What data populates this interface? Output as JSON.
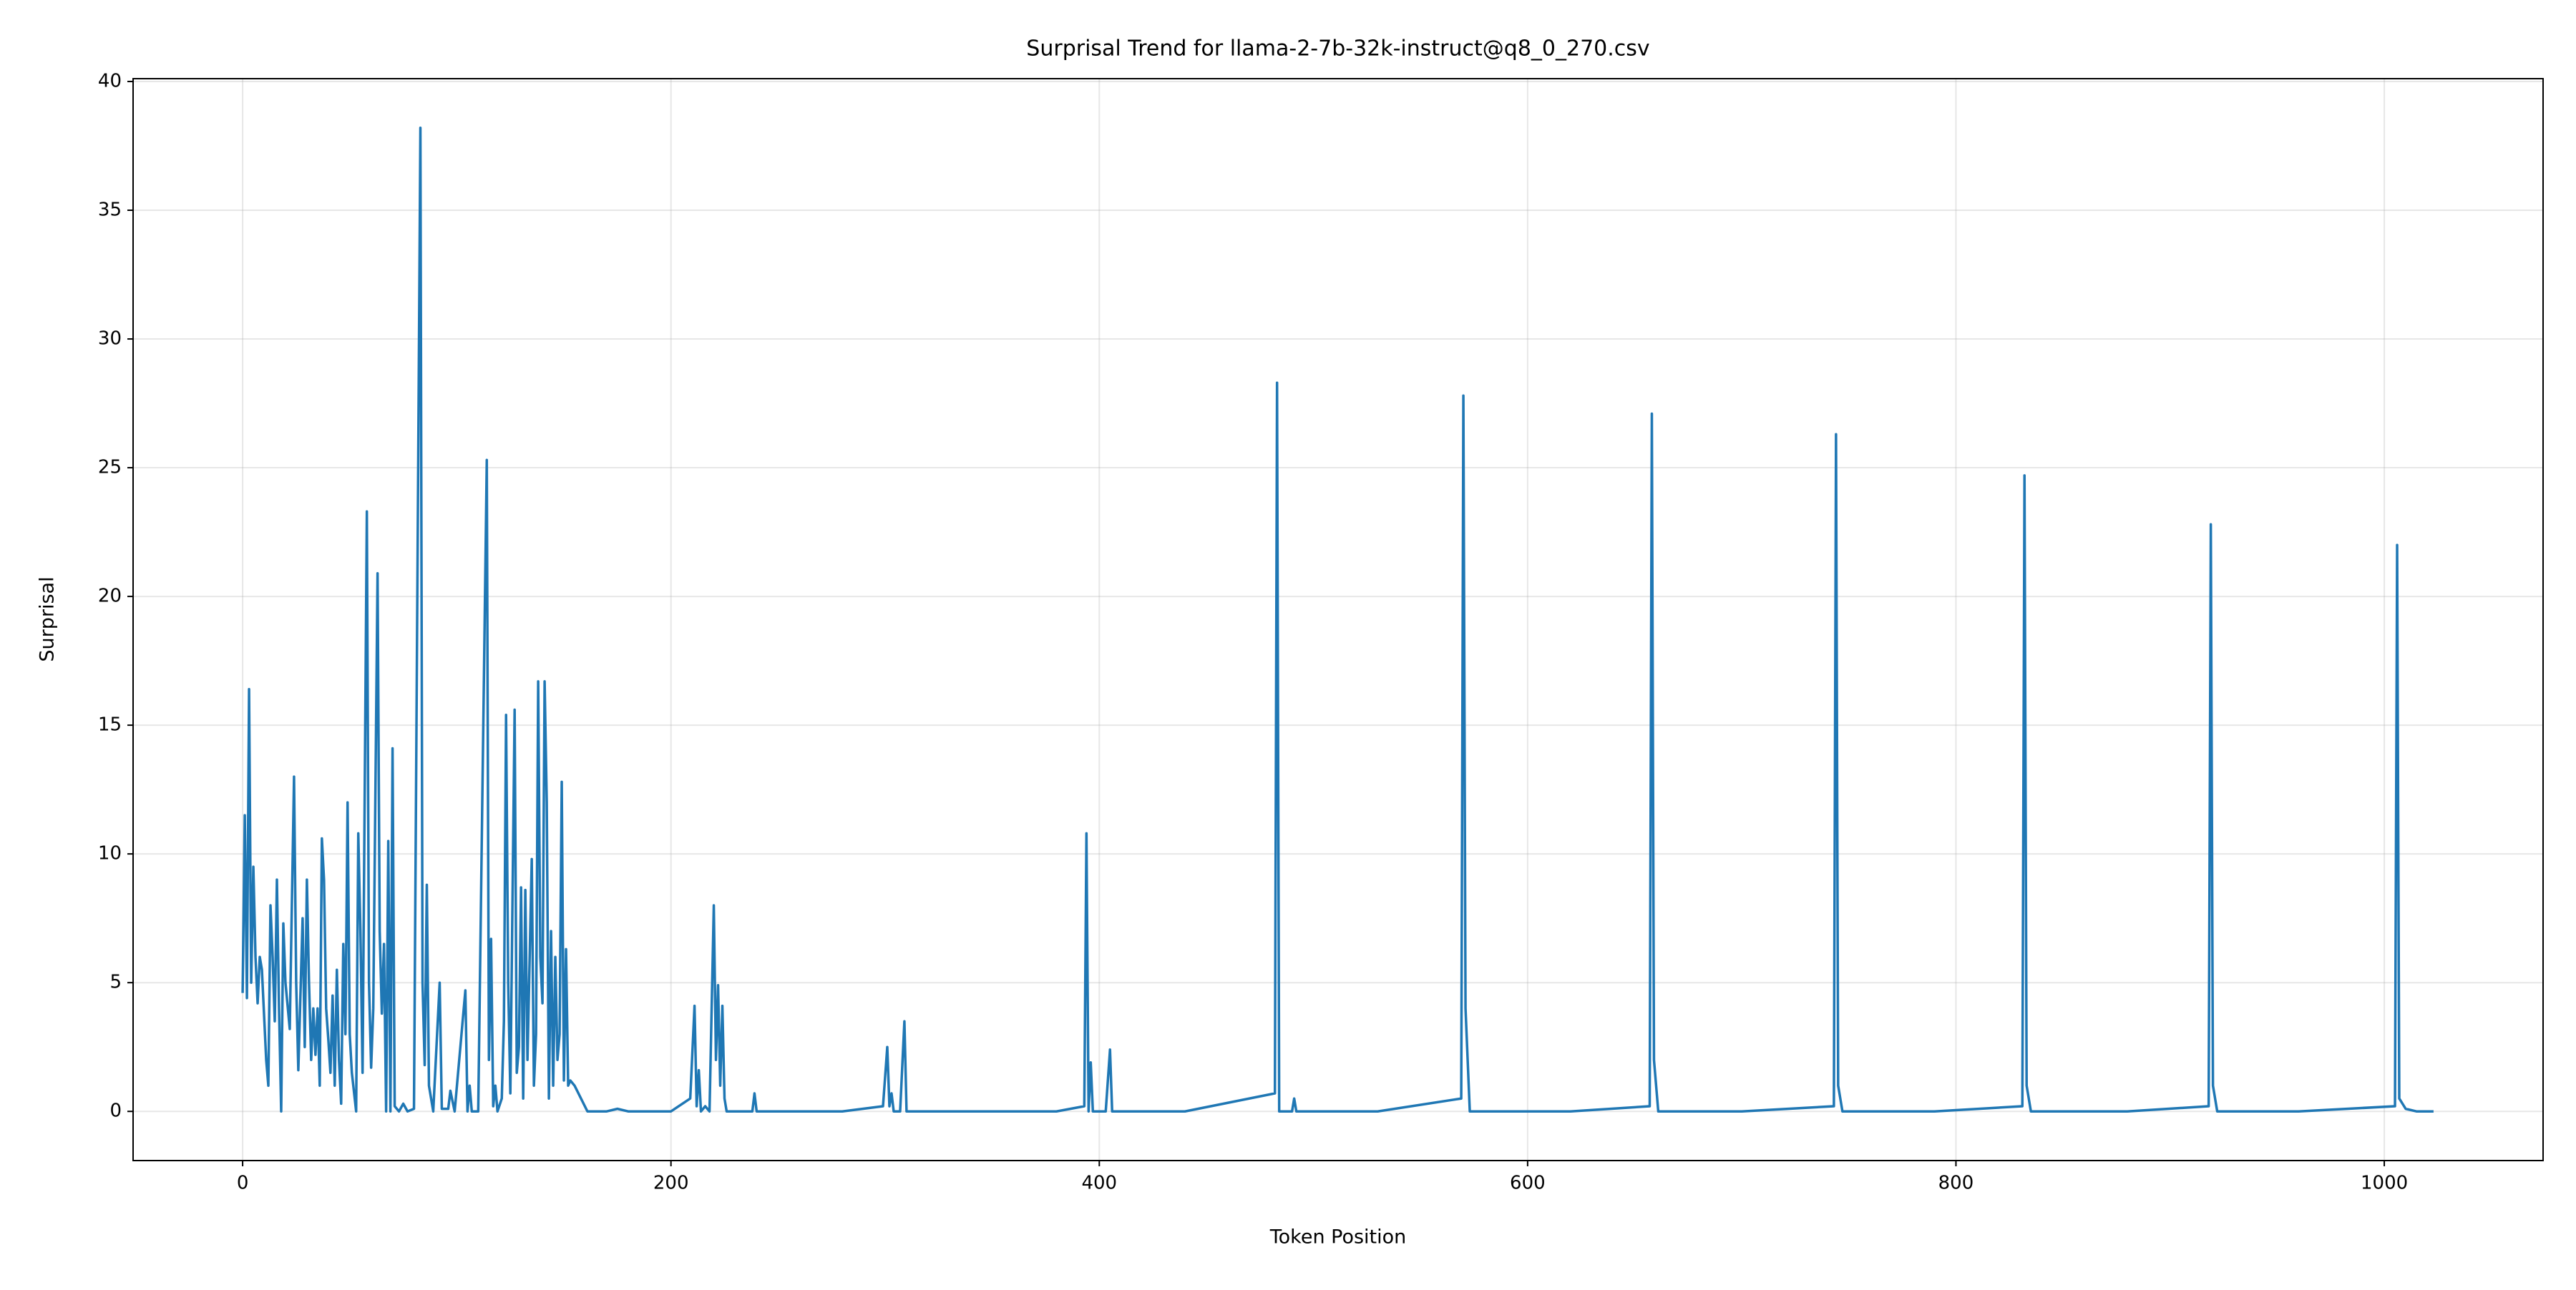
{
  "chart_data": {
    "type": "line",
    "title": "Surprisal Trend for llama-2-7b-32k-instruct@q8_0_270.csv",
    "xlabel": "Token Position",
    "ylabel": "Surprisal",
    "xlim": [
      -51.15,
      1074.15
    ],
    "ylim": [
      -1.91,
      40.11
    ],
    "xticks": [
      0,
      200,
      400,
      600,
      800,
      1000
    ],
    "yticks": [
      0,
      5,
      10,
      15,
      20,
      25,
      30,
      35,
      40
    ],
    "grid": true,
    "x": [
      0,
      1,
      2,
      3,
      4,
      5,
      6,
      7,
      8,
      9,
      11,
      12,
      13,
      14,
      15,
      16,
      17,
      18,
      19,
      20,
      22,
      24,
      25,
      26,
      28,
      29,
      30,
      31,
      32,
      33,
      34,
      35,
      36,
      37,
      38,
      39,
      40,
      41,
      42,
      43,
      44,
      45,
      46,
      47,
      48,
      49,
      50,
      51,
      53,
      54,
      55,
      56,
      58,
      59,
      60,
      61,
      63,
      64,
      65,
      66,
      67,
      68,
      69,
      70,
      71,
      73,
      75,
      77,
      80,
      83,
      84,
      85,
      86,
      87,
      89,
      92,
      93,
      96,
      97,
      99,
      104,
      105,
      106,
      107,
      110,
      114,
      115,
      116,
      117,
      118,
      119,
      121,
      122,
      123,
      124,
      125,
      127,
      128,
      129,
      130,
      131,
      132,
      133,
      135,
      136,
      137,
      138,
      139,
      140,
      141,
      142,
      143,
      144,
      145,
      146,
      147,
      148,
      149,
      150,
      151,
      152,
      153,
      155,
      158,
      161,
      170,
      175,
      180,
      190,
      200,
      209,
      211,
      212,
      213,
      214,
      216,
      218,
      220,
      221,
      222,
      223,
      224,
      225,
      226,
      230,
      238,
      239,
      240,
      260,
      280,
      299,
      301,
      302,
      303,
      304,
      307,
      309,
      310,
      340,
      380,
      393,
      394,
      395,
      396,
      397,
      403,
      405,
      406,
      440,
      482,
      483,
      484,
      490,
      491,
      492,
      530,
      569,
      570,
      571,
      573,
      620,
      657,
      658,
      659,
      661,
      700,
      743,
      744,
      745,
      747,
      790,
      831,
      832,
      833,
      835,
      880,
      918,
      919,
      920,
      922,
      960,
      1005,
      1006,
      1007,
      1010,
      1015,
      1023
    ],
    "series": [
      {
        "name": "Surprisal",
        "color": "#1f77b4",
        "values": [
          4.6,
          11.5,
          4.4,
          16.4,
          5,
          9.5,
          6,
          4.2,
          6,
          5.5,
          2,
          1,
          8,
          6,
          3.5,
          9,
          4,
          0,
          7.3,
          5,
          3.2,
          13,
          5,
          1.6,
          7.5,
          2.5,
          9,
          5,
          2,
          4,
          2.2,
          4,
          1,
          10.6,
          9,
          4,
          2.8,
          1.5,
          4.5,
          1,
          5.5,
          2,
          0.3,
          6.5,
          3,
          12,
          3,
          1.5,
          0,
          10.8,
          7,
          1.5,
          23.3,
          5,
          1.7,
          4,
          20.9,
          7,
          3.8,
          6.5,
          0,
          10.5,
          0,
          14.1,
          0.2,
          0,
          0.3,
          0,
          0.1,
          38.2,
          5,
          1.8,
          8.8,
          1,
          0,
          5,
          0.1,
          0.1,
          0.8,
          0,
          4.7,
          0,
          1,
          0,
          0,
          25.3,
          2,
          6.7,
          0.2,
          1,
          0,
          0.5,
          3.5,
          15.4,
          5,
          0.7,
          15.6,
          1.5,
          2.5,
          8.7,
          0.5,
          8.6,
          2,
          9.8,
          1,
          3,
          16.7,
          6,
          4.2,
          16.7,
          12,
          0.5,
          7,
          1,
          6,
          2,
          3,
          12.8,
          1.2,
          6.3,
          1,
          1.2,
          1,
          0.5,
          0,
          0,
          0.1,
          0,
          0,
          0,
          0.5,
          4.1,
          0.2,
          1.6,
          0,
          0.2,
          0,
          8,
          2,
          4.9,
          1,
          4.1,
          0.5,
          0,
          0,
          0,
          0.7,
          0,
          0,
          0,
          0.2,
          2.5,
          0.2,
          0.7,
          0,
          0,
          3.5,
          0,
          0,
          0,
          0.2,
          10.8,
          0,
          1.9,
          0,
          0,
          2.4,
          0,
          0,
          0.7,
          28.3,
          0,
          0,
          0.5,
          0,
          0,
          0.5,
          27.8,
          4,
          0,
          0,
          0.2,
          27.1,
          2,
          0,
          0,
          0.2,
          26.3,
          1,
          0,
          0,
          0.2,
          24.7,
          1,
          0,
          0,
          0.2,
          22.8,
          1,
          0,
          0,
          0.2,
          22,
          0.5,
          0.1,
          0,
          0
        ]
      }
    ]
  }
}
